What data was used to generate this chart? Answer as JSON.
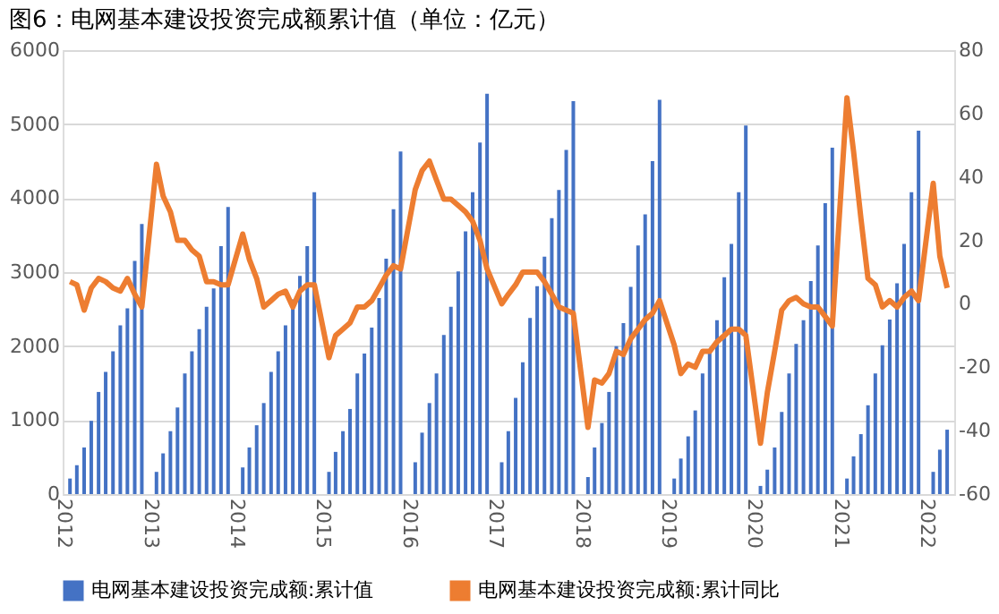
{
  "chart_data": {
    "type": "bar",
    "title": "图6：电网基本建设投资完成额累计值（单位：亿元）",
    "x": [
      "2012-02",
      "2012-03",
      "2012-04",
      "2012-05",
      "2012-06",
      "2012-07",
      "2012-08",
      "2012-09",
      "2012-10",
      "2012-11",
      "2012-12",
      "2013-02",
      "2013-03",
      "2013-04",
      "2013-05",
      "2013-06",
      "2013-07",
      "2013-08",
      "2013-09",
      "2013-10",
      "2013-11",
      "2013-12",
      "2014-02",
      "2014-03",
      "2014-04",
      "2014-05",
      "2014-06",
      "2014-07",
      "2014-08",
      "2014-09",
      "2014-10",
      "2014-11",
      "2014-12",
      "2015-02",
      "2015-03",
      "2015-04",
      "2015-05",
      "2015-06",
      "2015-07",
      "2015-08",
      "2015-09",
      "2015-10",
      "2015-11",
      "2015-12",
      "2016-02",
      "2016-03",
      "2016-04",
      "2016-05",
      "2016-06",
      "2016-07",
      "2016-08",
      "2016-09",
      "2016-10",
      "2016-11",
      "2016-12",
      "2017-02",
      "2017-03",
      "2017-04",
      "2017-05",
      "2017-06",
      "2017-07",
      "2017-08",
      "2017-09",
      "2017-10",
      "2017-11",
      "2017-12",
      "2018-02",
      "2018-03",
      "2018-04",
      "2018-05",
      "2018-06",
      "2018-07",
      "2018-08",
      "2018-09",
      "2018-10",
      "2018-11",
      "2018-12",
      "2019-02",
      "2019-03",
      "2019-04",
      "2019-05",
      "2019-06",
      "2019-07",
      "2019-08",
      "2019-09",
      "2019-10",
      "2019-11",
      "2019-12",
      "2020-02",
      "2020-03",
      "2020-04",
      "2020-05",
      "2020-06",
      "2020-07",
      "2020-08",
      "2020-09",
      "2020-10",
      "2020-11",
      "2020-12",
      "2021-02",
      "2021-03",
      "2021-04",
      "2021-05",
      "2021-06",
      "2021-07",
      "2021-08",
      "2021-09",
      "2021-10",
      "2021-11",
      "2021-12",
      "2022-02",
      "2022-03",
      "2022-04"
    ],
    "series": [
      {
        "name": "电网基本建设投资完成额:累计值",
        "color": "#4472c4",
        "values": [
          210,
          390,
          630,
          990,
          1380,
          1650,
          1930,
          2280,
          2510,
          3150,
          3650,
          300,
          550,
          850,
          1170,
          1630,
          1930,
          2230,
          2530,
          2780,
          3350,
          3880,
          360,
          630,
          930,
          1230,
          1650,
          1930,
          2280,
          2630,
          2950,
          3350,
          4080,
          300,
          570,
          850,
          1150,
          1630,
          1900,
          2250,
          2650,
          3180,
          3850,
          4630,
          430,
          830,
          1230,
          1630,
          2150,
          2530,
          3010,
          3550,
          4080,
          4750,
          5410,
          430,
          850,
          1300,
          1780,
          2380,
          2810,
          3210,
          3730,
          4110,
          4650,
          5310,
          230,
          630,
          960,
          1380,
          2000,
          2310,
          2800,
          3360,
          3780,
          4500,
          5330,
          210,
          480,
          780,
          1130,
          1630,
          1950,
          2350,
          2930,
          3380,
          4080,
          4980,
          110,
          330,
          630,
          1110,
          1630,
          2030,
          2350,
          2880,
          3360,
          3930,
          4680,
          210,
          510,
          810,
          1200,
          1630,
          2010,
          2360,
          2850,
          3380,
          4080,
          4910,
          300,
          600,
          870
        ]
      },
      {
        "name": "电网基本建设投资完成额:累计同比",
        "type": "line",
        "axis": "y2",
        "color": "#ed7d31",
        "values": [
          7,
          6,
          -2,
          5,
          8,
          7,
          5,
          4,
          8,
          3,
          -1,
          44,
          34,
          29,
          20,
          20,
          17,
          15,
          7,
          7,
          6,
          6,
          22,
          14,
          8,
          -1,
          1,
          3,
          4,
          -1,
          4,
          6,
          6,
          -17,
          -10,
          -8,
          -6,
          -1,
          -1,
          1,
          5,
          9,
          12,
          11,
          36,
          42,
          45,
          39,
          33,
          33,
          31,
          29,
          26,
          20,
          11,
          0,
          3,
          6,
          10,
          10,
          10,
          7,
          3,
          -1,
          -2,
          -3,
          -39,
          -24,
          -25,
          -22,
          -15,
          -16,
          -11,
          -8,
          -5,
          -3,
          1,
          -13,
          -22,
          -19,
          -20,
          -15,
          -15,
          -12,
          -10,
          -8,
          -8,
          -10,
          -44,
          -28,
          -15,
          -2,
          1,
          2,
          0,
          -1,
          -1,
          -4,
          -7,
          65,
          48,
          27,
          8,
          6,
          -1,
          1,
          -1,
          2,
          4,
          1,
          38,
          15,
          5
        ]
      }
    ],
    "xlim": [
      "2012-01",
      "2022-05"
    ],
    "xticks": [
      "2012",
      "2013",
      "2014",
      "2015",
      "2016",
      "2017",
      "2018",
      "2019",
      "2020",
      "2021",
      "2022"
    ],
    "ylim": [
      0,
      6000
    ],
    "yticks": [
      0,
      1000,
      2000,
      3000,
      4000,
      5000,
      6000
    ],
    "y2lim": [
      -60,
      80
    ],
    "y2ticks": [
      -60,
      -40,
      -20,
      0,
      20,
      40,
      60,
      80
    ],
    "grid": "y",
    "legend": "bottom",
    "line_style": "solid",
    "marker": "none"
  }
}
